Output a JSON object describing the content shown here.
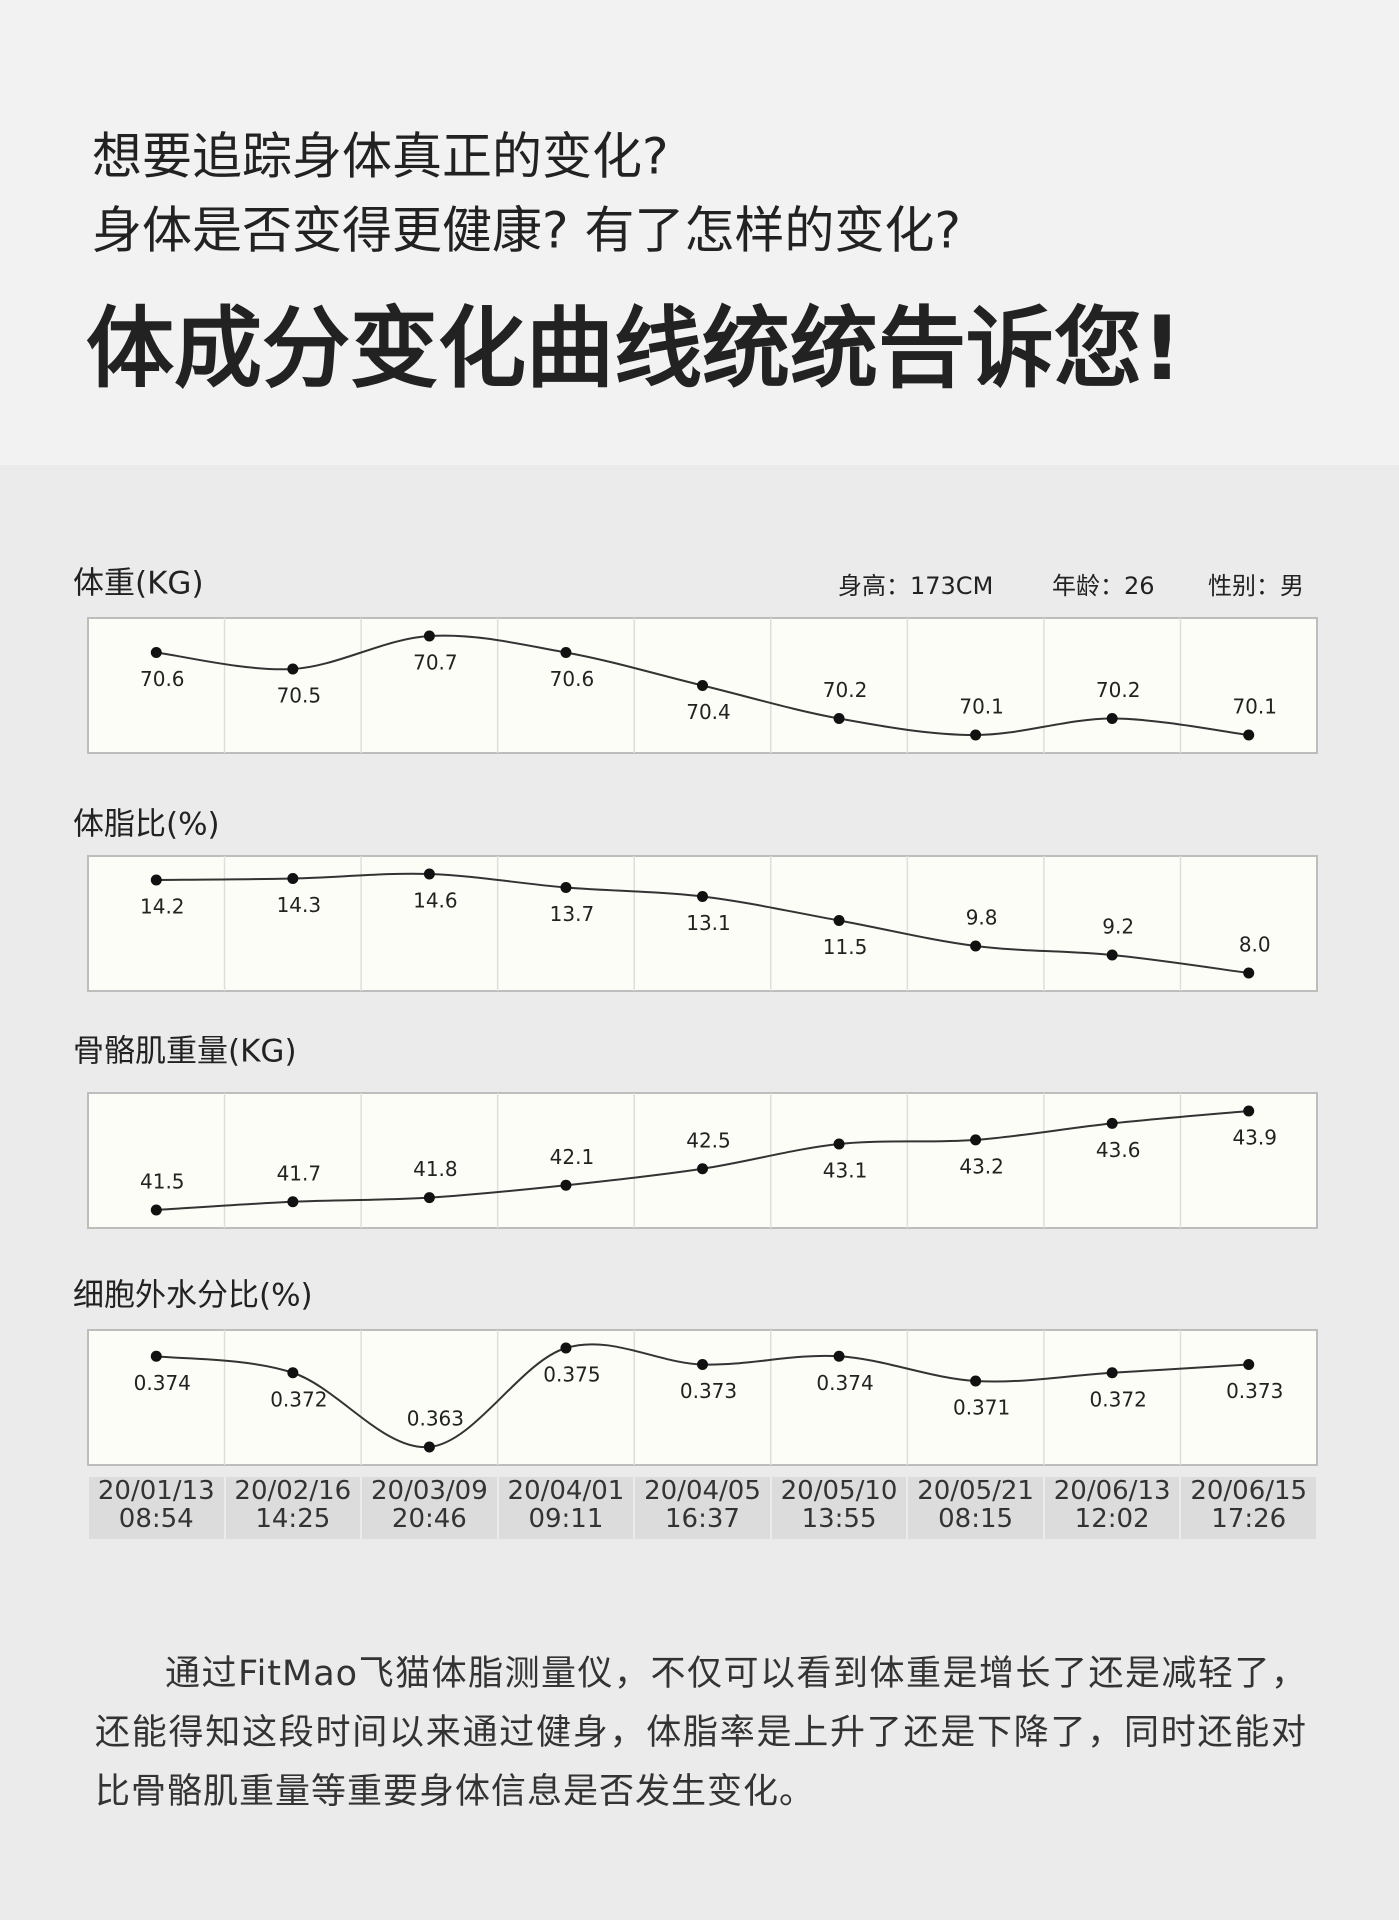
{
  "header": {
    "line1": "想要追踪身体真正的变化?",
    "line2": "身体是否变得更健康? 有了怎样的变化?",
    "headline": "体成分变化曲线统统告诉您!"
  },
  "chart_data": [
    {
      "type": "line",
      "title": "体重(KG)",
      "annotations": [
        "身高：173CM",
        "年龄：26",
        "性别：男"
      ],
      "color": "#333333",
      "values": [
        70.6,
        70.5,
        70.7,
        70.6,
        70.4,
        70.2,
        70.1,
        70.2,
        70.1
      ]
    },
    {
      "type": "line",
      "title": "体脂比(%)",
      "color": "#333333",
      "values": [
        14.2,
        14.3,
        14.6,
        13.7,
        13.1,
        11.5,
        9.8,
        9.2,
        8.0
      ],
      "value_labels": [
        "14.2",
        "14.3",
        "14.6",
        "13.7",
        "13.1",
        "11.5",
        "9.8",
        "9.2",
        "8.0"
      ]
    },
    {
      "type": "line",
      "title": "骨骼肌重量(KG)",
      "color": "#333333",
      "values": [
        41.5,
        41.7,
        41.8,
        42.1,
        42.5,
        43.1,
        43.2,
        43.6,
        43.9
      ]
    },
    {
      "type": "line",
      "title": "细胞外水分比(%)",
      "color": "#333333",
      "values": [
        0.374,
        0.372,
        0.363,
        0.375,
        0.373,
        0.374,
        0.371,
        0.372,
        0.373
      ],
      "categories": [
        "20/01/13\n08:54",
        "20/02/16\n14:25",
        "20/03/09\n20:46",
        "20/04/01\n09:11",
        "20/04/05\n16:37",
        "20/05/10\n13:55",
        "20/05/21\n08:15",
        "20/06/13\n12:02",
        "20/06/15\n17:26"
      ]
    }
  ],
  "paragraph": "通过FitMao飞猫体脂测量仪，不仅可以看到体重是增长了还是减轻了，还能得知这段时间以来通过健身，体脂率是上升了还是下降了，同时还能对比骨骼肌重量等重要身体信息是否发生变化。"
}
